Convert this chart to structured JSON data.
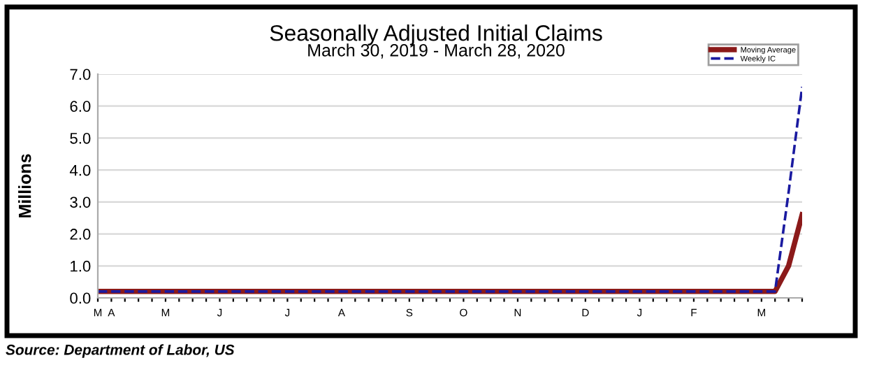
{
  "chart_data": {
    "type": "line",
    "title": "Seasonally Adjusted Initial Claims",
    "subtitle": "March 30, 2019 - March 28, 2020",
    "ylabel": "Millions",
    "categories": [
      "M",
      "A",
      null,
      null,
      null,
      "M",
      null,
      null,
      null,
      "J",
      null,
      null,
      null,
      null,
      "J",
      null,
      null,
      null,
      "A",
      null,
      null,
      null,
      null,
      "S",
      null,
      null,
      null,
      "O",
      null,
      null,
      null,
      "N",
      null,
      null,
      null,
      null,
      "D",
      null,
      null,
      null,
      "J",
      null,
      null,
      null,
      "F",
      null,
      null,
      null,
      null,
      "M",
      null,
      null,
      null
    ],
    "series": [
      {
        "name": "Moving Average",
        "color": "#8b1a1a",
        "line_style": "solid",
        "values": [
          0.2,
          0.2,
          0.2,
          0.2,
          0.2,
          0.2,
          0.2,
          0.2,
          0.2,
          0.2,
          0.2,
          0.2,
          0.2,
          0.2,
          0.2,
          0.2,
          0.2,
          0.2,
          0.2,
          0.2,
          0.2,
          0.2,
          0.2,
          0.2,
          0.2,
          0.2,
          0.2,
          0.2,
          0.2,
          0.2,
          0.2,
          0.2,
          0.2,
          0.2,
          0.2,
          0.2,
          0.2,
          0.2,
          0.2,
          0.2,
          0.2,
          0.2,
          0.2,
          0.2,
          0.2,
          0.2,
          0.2,
          0.2,
          0.2,
          0.2,
          0.2,
          1.0,
          2.6
        ]
      },
      {
        "name": "Weekly IC",
        "color": "#1a1aa0",
        "line_style": "dashed",
        "values": [
          0.2,
          0.2,
          0.2,
          0.2,
          0.2,
          0.2,
          0.2,
          0.2,
          0.2,
          0.2,
          0.2,
          0.2,
          0.2,
          0.2,
          0.2,
          0.2,
          0.2,
          0.2,
          0.2,
          0.2,
          0.2,
          0.2,
          0.2,
          0.2,
          0.2,
          0.2,
          0.2,
          0.2,
          0.2,
          0.2,
          0.2,
          0.2,
          0.2,
          0.2,
          0.2,
          0.2,
          0.2,
          0.2,
          0.2,
          0.2,
          0.2,
          0.2,
          0.2,
          0.2,
          0.2,
          0.2,
          0.2,
          0.2,
          0.2,
          0.2,
          0.2,
          3.3,
          6.6
        ]
      }
    ],
    "ylim": [
      0,
      7
    ],
    "yticks": [
      {
        "value": 0,
        "label": "0.0"
      },
      {
        "value": 1,
        "label": "1.0"
      },
      {
        "value": 2,
        "label": "2.0"
      },
      {
        "value": 3,
        "label": "3.0"
      },
      {
        "value": 4,
        "label": "4.0"
      },
      {
        "value": 5,
        "label": "5.0"
      },
      {
        "value": 6,
        "label": "6.0"
      },
      {
        "value": 7,
        "label": "7.0"
      }
    ],
    "grid": "y",
    "legend": "top right",
    "marker": "none",
    "annotations": [
      "Source: Department of Labor, US"
    ]
  }
}
